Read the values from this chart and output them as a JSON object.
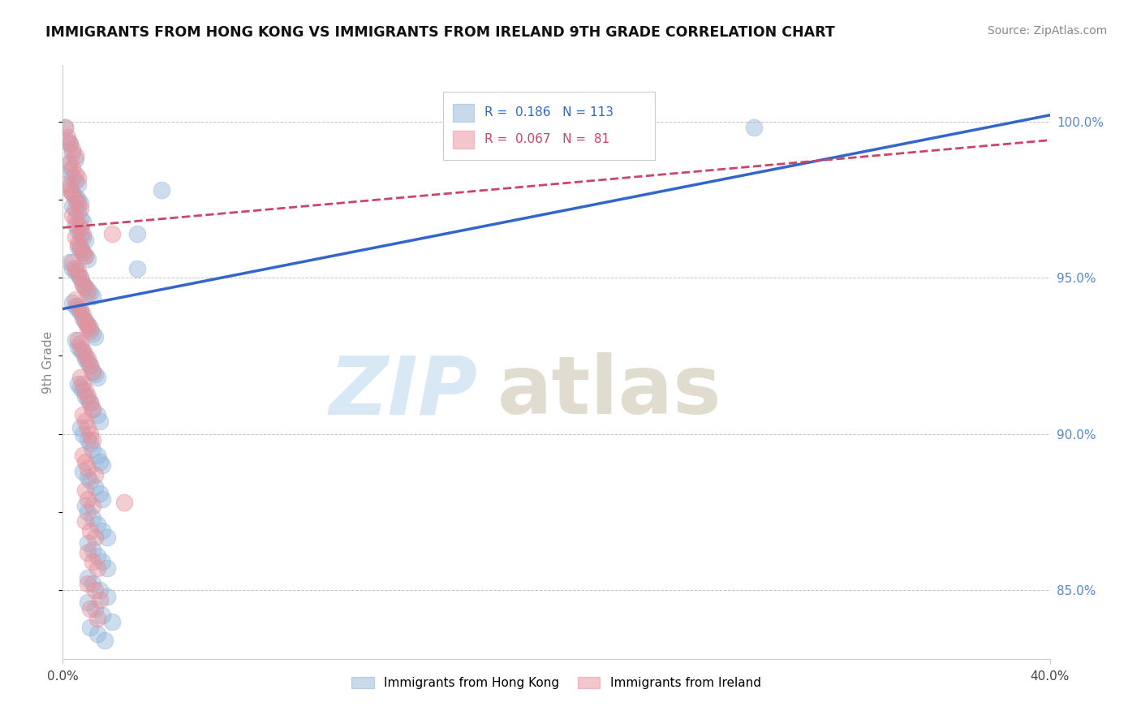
{
  "title": "IMMIGRANTS FROM HONG KONG VS IMMIGRANTS FROM IRELAND 9TH GRADE CORRELATION CHART",
  "source": "Source: ZipAtlas.com",
  "legend_blue_label": "Immigrants from Hong Kong",
  "legend_pink_label": "Immigrants from Ireland",
  "R_blue": 0.186,
  "N_blue": 113,
  "R_pink": 0.067,
  "N_pink": 81,
  "blue_color": "#92B4D9",
  "pink_color": "#E8909A",
  "trend_blue_color": "#3366CC",
  "trend_pink_color": "#CC4466",
  "watermark_zip_color": "#D8E8F5",
  "watermark_atlas_color": "#E0DDD0",
  "xmin": 0.0,
  "xmax": 0.4,
  "ymin": 0.828,
  "ymax": 1.018,
  "ytick_vals": [
    0.85,
    0.9,
    0.95,
    1.0
  ],
  "ytick_labels": [
    "85.0%",
    "90.0%",
    "95.0%",
    "100.0%"
  ],
  "blue_trend_x0": 0.0,
  "blue_trend_y0": 0.94,
  "blue_trend_x1": 0.4,
  "blue_trend_y1": 1.002,
  "pink_trend_x0": 0.0,
  "pink_trend_y0": 0.966,
  "pink_trend_x1": 0.4,
  "pink_trend_y1": 0.994,
  "blue_points": [
    [
      0.001,
      0.998
    ],
    [
      0.002,
      0.994
    ],
    [
      0.003,
      0.993
    ],
    [
      0.004,
      0.99
    ],
    [
      0.005,
      0.988
    ],
    [
      0.002,
      0.986
    ],
    [
      0.003,
      0.984
    ],
    [
      0.004,
      0.982
    ],
    [
      0.005,
      0.981
    ],
    [
      0.006,
      0.98
    ],
    [
      0.003,
      0.979
    ],
    [
      0.004,
      0.977
    ],
    [
      0.005,
      0.976
    ],
    [
      0.006,
      0.975
    ],
    [
      0.007,
      0.974
    ],
    [
      0.004,
      0.973
    ],
    [
      0.005,
      0.972
    ],
    [
      0.006,
      0.971
    ],
    [
      0.007,
      0.969
    ],
    [
      0.008,
      0.968
    ],
    [
      0.005,
      0.967
    ],
    [
      0.006,
      0.965
    ],
    [
      0.007,
      0.964
    ],
    [
      0.008,
      0.963
    ],
    [
      0.009,
      0.962
    ],
    [
      0.006,
      0.96
    ],
    [
      0.007,
      0.959
    ],
    [
      0.008,
      0.958
    ],
    [
      0.009,
      0.957
    ],
    [
      0.01,
      0.956
    ],
    [
      0.003,
      0.955
    ],
    [
      0.004,
      0.953
    ],
    [
      0.005,
      0.952
    ],
    [
      0.006,
      0.951
    ],
    [
      0.007,
      0.95
    ],
    [
      0.008,
      0.948
    ],
    [
      0.009,
      0.947
    ],
    [
      0.01,
      0.946
    ],
    [
      0.011,
      0.945
    ],
    [
      0.012,
      0.944
    ],
    [
      0.004,
      0.942
    ],
    [
      0.005,
      0.941
    ],
    [
      0.006,
      0.94
    ],
    [
      0.007,
      0.939
    ],
    [
      0.008,
      0.937
    ],
    [
      0.009,
      0.936
    ],
    [
      0.01,
      0.935
    ],
    [
      0.011,
      0.934
    ],
    [
      0.012,
      0.932
    ],
    [
      0.013,
      0.931
    ],
    [
      0.005,
      0.93
    ],
    [
      0.006,
      0.928
    ],
    [
      0.007,
      0.927
    ],
    [
      0.008,
      0.926
    ],
    [
      0.009,
      0.924
    ],
    [
      0.01,
      0.923
    ],
    [
      0.011,
      0.922
    ],
    [
      0.012,
      0.92
    ],
    [
      0.013,
      0.919
    ],
    [
      0.014,
      0.918
    ],
    [
      0.006,
      0.916
    ],
    [
      0.007,
      0.915
    ],
    [
      0.008,
      0.914
    ],
    [
      0.009,
      0.912
    ],
    [
      0.01,
      0.911
    ],
    [
      0.011,
      0.91
    ],
    [
      0.012,
      0.908
    ],
    [
      0.014,
      0.906
    ],
    [
      0.015,
      0.904
    ],
    [
      0.007,
      0.902
    ],
    [
      0.008,
      0.9
    ],
    [
      0.01,
      0.898
    ],
    [
      0.011,
      0.897
    ],
    [
      0.012,
      0.895
    ],
    [
      0.014,
      0.893
    ],
    [
      0.015,
      0.891
    ],
    [
      0.016,
      0.89
    ],
    [
      0.008,
      0.888
    ],
    [
      0.01,
      0.886
    ],
    [
      0.011,
      0.885
    ],
    [
      0.013,
      0.883
    ],
    [
      0.015,
      0.881
    ],
    [
      0.016,
      0.879
    ],
    [
      0.009,
      0.877
    ],
    [
      0.01,
      0.875
    ],
    [
      0.012,
      0.873
    ],
    [
      0.014,
      0.871
    ],
    [
      0.016,
      0.869
    ],
    [
      0.018,
      0.867
    ],
    [
      0.01,
      0.865
    ],
    [
      0.012,
      0.863
    ],
    [
      0.014,
      0.861
    ],
    [
      0.016,
      0.859
    ],
    [
      0.018,
      0.857
    ],
    [
      0.01,
      0.854
    ],
    [
      0.012,
      0.852
    ],
    [
      0.015,
      0.85
    ],
    [
      0.018,
      0.848
    ],
    [
      0.01,
      0.846
    ],
    [
      0.013,
      0.844
    ],
    [
      0.016,
      0.842
    ],
    [
      0.02,
      0.84
    ],
    [
      0.011,
      0.838
    ],
    [
      0.014,
      0.836
    ],
    [
      0.017,
      0.834
    ],
    [
      0.03,
      0.964
    ],
    [
      0.04,
      0.978
    ],
    [
      0.28,
      0.998
    ],
    [
      0.03,
      0.953
    ]
  ],
  "pink_points": [
    [
      0.001,
      0.998
    ],
    [
      0.002,
      0.995
    ],
    [
      0.003,
      0.993
    ],
    [
      0.004,
      0.991
    ],
    [
      0.005,
      0.989
    ],
    [
      0.003,
      0.987
    ],
    [
      0.004,
      0.985
    ],
    [
      0.005,
      0.983
    ],
    [
      0.006,
      0.982
    ],
    [
      0.002,
      0.98
    ],
    [
      0.003,
      0.978
    ],
    [
      0.004,
      0.977
    ],
    [
      0.005,
      0.975
    ],
    [
      0.006,
      0.974
    ],
    [
      0.007,
      0.972
    ],
    [
      0.004,
      0.97
    ],
    [
      0.005,
      0.969
    ],
    [
      0.006,
      0.967
    ],
    [
      0.007,
      0.966
    ],
    [
      0.008,
      0.964
    ],
    [
      0.005,
      0.963
    ],
    [
      0.006,
      0.961
    ],
    [
      0.007,
      0.96
    ],
    [
      0.008,
      0.958
    ],
    [
      0.009,
      0.957
    ],
    [
      0.004,
      0.955
    ],
    [
      0.005,
      0.953
    ],
    [
      0.006,
      0.952
    ],
    [
      0.007,
      0.95
    ],
    [
      0.008,
      0.948
    ],
    [
      0.009,
      0.947
    ],
    [
      0.01,
      0.945
    ],
    [
      0.005,
      0.943
    ],
    [
      0.006,
      0.941
    ],
    [
      0.007,
      0.94
    ],
    [
      0.008,
      0.938
    ],
    [
      0.009,
      0.936
    ],
    [
      0.01,
      0.935
    ],
    [
      0.011,
      0.933
    ],
    [
      0.006,
      0.93
    ],
    [
      0.007,
      0.929
    ],
    [
      0.008,
      0.927
    ],
    [
      0.009,
      0.925
    ],
    [
      0.01,
      0.924
    ],
    [
      0.011,
      0.922
    ],
    [
      0.012,
      0.92
    ],
    [
      0.007,
      0.918
    ],
    [
      0.008,
      0.916
    ],
    [
      0.009,
      0.914
    ],
    [
      0.01,
      0.912
    ],
    [
      0.011,
      0.91
    ],
    [
      0.012,
      0.908
    ],
    [
      0.008,
      0.906
    ],
    [
      0.009,
      0.904
    ],
    [
      0.01,
      0.902
    ],
    [
      0.011,
      0.9
    ],
    [
      0.012,
      0.898
    ],
    [
      0.008,
      0.893
    ],
    [
      0.009,
      0.891
    ],
    [
      0.01,
      0.889
    ],
    [
      0.013,
      0.887
    ],
    [
      0.009,
      0.882
    ],
    [
      0.01,
      0.879
    ],
    [
      0.012,
      0.877
    ],
    [
      0.009,
      0.872
    ],
    [
      0.011,
      0.869
    ],
    [
      0.013,
      0.867
    ],
    [
      0.01,
      0.862
    ],
    [
      0.012,
      0.859
    ],
    [
      0.014,
      0.857
    ],
    [
      0.01,
      0.852
    ],
    [
      0.013,
      0.85
    ],
    [
      0.015,
      0.847
    ],
    [
      0.011,
      0.844
    ],
    [
      0.014,
      0.841
    ],
    [
      0.025,
      0.878
    ],
    [
      0.02,
      0.964
    ],
    [
      0.01,
      0.934
    ]
  ]
}
